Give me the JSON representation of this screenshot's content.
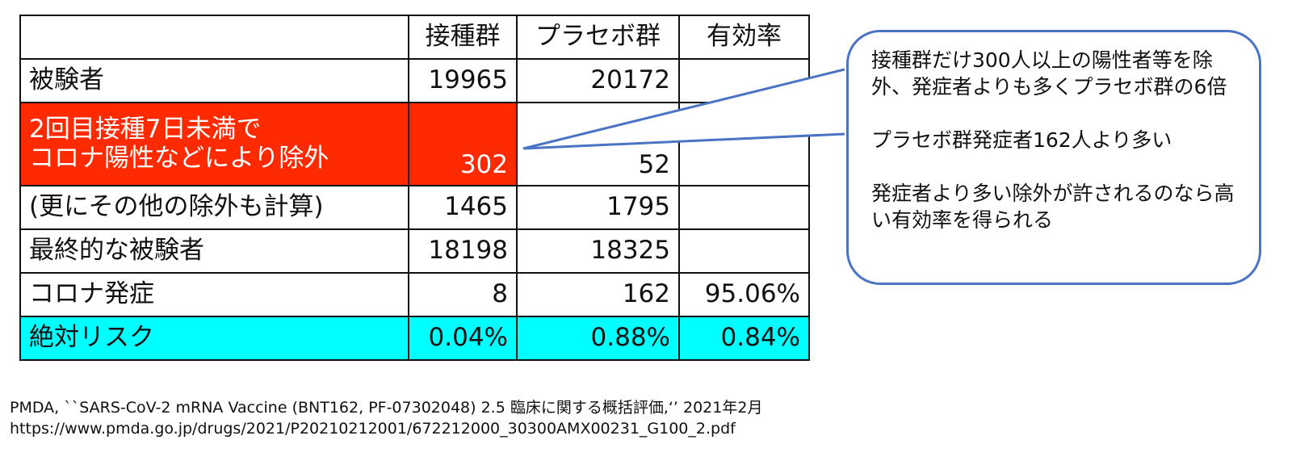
{
  "table": {
    "headers": [
      "",
      "接種群",
      "プラセボ群",
      "有効率"
    ],
    "rows": [
      {
        "label": "被験者",
        "vaccine": "19965",
        "placebo": "20172",
        "efficacy": ""
      },
      {
        "label_line1": "2回目接種7日未満で",
        "label_line2": "コロナ陽性などにより除外",
        "vaccine": "302",
        "placebo": "52",
        "efficacy": ""
      },
      {
        "label": "(更にその他の除外も計算)",
        "vaccine": "1465",
        "placebo": "1795",
        "efficacy": ""
      },
      {
        "label": "最終的な被験者",
        "vaccine": "18198",
        "placebo": "18325",
        "efficacy": ""
      },
      {
        "label": "コロナ発症",
        "vaccine": "8",
        "placebo": "162",
        "efficacy": "95.06%"
      },
      {
        "label": "絶対リスク",
        "vaccine": "0.04%",
        "placebo": "0.88%",
        "efficacy": "0.84%"
      }
    ]
  },
  "callout": {
    "para1": "接種群だけ300人以上の陽性者等を除外、発症者よりも多くプラセボ群の6倍",
    "para2": "プラセボ群発症者162人より多い",
    "para3": "発症者より多い除外が許されるのなら高い有効率を得られる"
  },
  "reference": {
    "citation": "PMDA, ``SARS-CoV-2 mRNA Vaccine (BNT162, PF-07302048) 2.5 臨床に関する概括評価,‘’ 2021年2月",
    "url": "https://www.pmda.go.jp/drugs/2021/P20210212001/672212000_30300AMX00231_G100_2.pdf"
  },
  "colors": {
    "highlight_red": "#ff2a00",
    "highlight_cyan": "#00ffff",
    "callout_border": "#4a73c4"
  }
}
